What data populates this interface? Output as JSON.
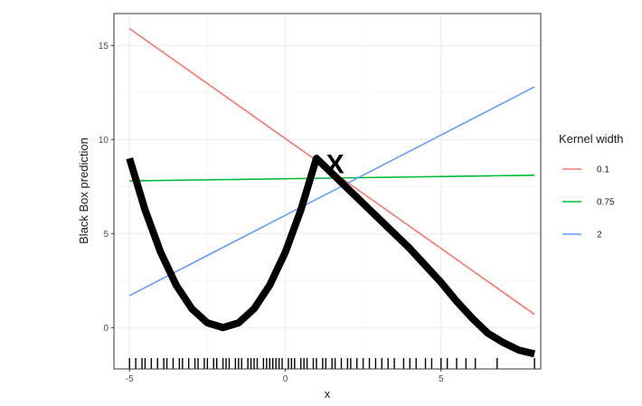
{
  "chart_data": {
    "type": "line",
    "xlabel": "x",
    "ylabel": "Black Box prediction",
    "xlim": [
      -5.5,
      8.2
    ],
    "ylim": [
      -2.2,
      16.7
    ],
    "x_ticks": [
      -5,
      0,
      5
    ],
    "x_tick_labels": [
      "-5",
      "0",
      "5"
    ],
    "y_ticks": [
      0,
      5,
      10,
      15
    ],
    "y_tick_labels": [
      "0",
      "5",
      "10",
      "15"
    ],
    "grid": true,
    "legend": {
      "title": "Kernel width",
      "position": "right",
      "entries": [
        {
          "label": "0.1",
          "color": "#F8766D"
        },
        {
          "label": "0.75",
          "color": "#00BA38"
        },
        {
          "label": "2",
          "color": "#619CFF"
        }
      ]
    },
    "series": [
      {
        "name": "0.1",
        "color": "#F8766D",
        "x": [
          -5,
          8
        ],
        "y": [
          15.9,
          0.7
        ]
      },
      {
        "name": "0.75",
        "color": "#00BA38",
        "x": [
          -5,
          8
        ],
        "y": [
          7.8,
          8.1
        ]
      },
      {
        "name": "2",
        "color": "#619CFF",
        "x": [
          -5,
          8
        ],
        "y": [
          1.7,
          12.8
        ]
      }
    ],
    "black_box": {
      "color": "#000000",
      "x": [
        -5,
        -4.5,
        -4,
        -3.5,
        -3,
        -2.5,
        -2,
        -1.5,
        -1,
        -0.5,
        0,
        0.5,
        1,
        1.5,
        2,
        2.5,
        3,
        3.5,
        4,
        4.5,
        5,
        5.5,
        6,
        6.5,
        7,
        7.5,
        8
      ],
      "y": [
        9,
        6.25,
        4,
        2.25,
        1,
        0.25,
        0,
        0.25,
        1,
        2.25,
        4,
        6.25,
        9,
        8.2,
        7.4,
        6.6,
        5.8,
        5.0,
        4.2,
        3.3,
        2.4,
        1.4,
        0.5,
        -0.3,
        -0.8,
        -1.2,
        -1.4
      ]
    },
    "point_of_interest": {
      "label": "X",
      "x": 1.6,
      "y": 8.6
    },
    "rug_x": [
      -5.0,
      -4.8,
      -4.6,
      -4.5,
      -4.3,
      -4.1,
      -3.9,
      -3.8,
      -3.6,
      -3.4,
      -3.3,
      -3.1,
      -2.9,
      -2.8,
      -2.6,
      -2.5,
      -2.3,
      -2.2,
      -2.0,
      -1.9,
      -1.8,
      -1.6,
      -1.5,
      -1.4,
      -1.2,
      -1.1,
      -1.0,
      -0.9,
      -0.7,
      -0.6,
      -0.5,
      -0.4,
      -0.3,
      -0.2,
      -0.1,
      0.1,
      0.2,
      0.3,
      0.5,
      0.6,
      0.7,
      0.9,
      1.0,
      1.2,
      1.3,
      1.5,
      1.6,
      1.8,
      2.0,
      2.1,
      2.3,
      2.5,
      2.7,
      2.9,
      3.1,
      3.3,
      3.5,
      3.8,
      4.0,
      4.2,
      4.5,
      4.7,
      5.0,
      5.2,
      5.5,
      5.8,
      6.1,
      6.8,
      8.0
    ]
  }
}
